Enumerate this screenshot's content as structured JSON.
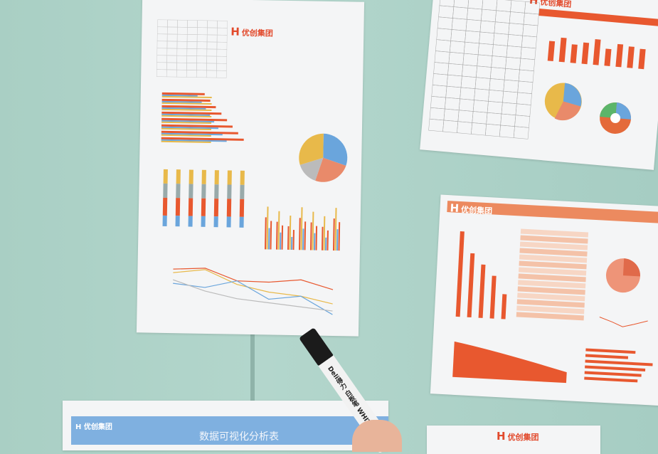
{
  "scene": "Printed data visualization report sheets taped to a glass whiteboard wall, with a whiteboard marker",
  "papers": {
    "center_logo": "优创集团",
    "top_right_logo": "优创集团",
    "mid_right_logo": "优创集团",
    "bottom_right_logo": "优创集团",
    "bottom_left": {
      "logo": "优创集团",
      "title": "数据可视化分析表"
    }
  },
  "pen": {
    "brand": "Deli得力",
    "label": "白板笔 WHITEBOA"
  },
  "colors": {
    "wall": "#abd0c6",
    "accent_orange": "#e8582f",
    "chart_blue": "#6aa5dc",
    "chart_yellow": "#e8b94a",
    "banner_blue": "#7fb0e0"
  }
}
